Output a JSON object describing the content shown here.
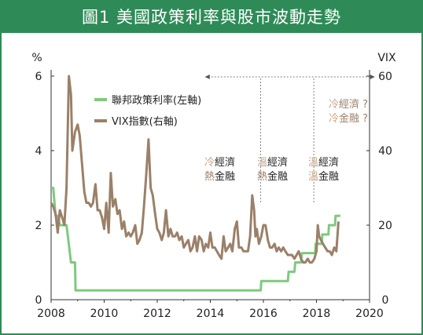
{
  "title": "圖1 美國政策利率與股市波動走勢",
  "colors": {
    "frame": "#2e8b57",
    "fed": "#7fc97f",
    "vix": "#9b8069",
    "temp_cold": "#c8a58a",
    "temp_hot": "#9b8069"
  },
  "chart_data": {
    "type": "line",
    "title": "圖1 美國政策利率與股市波動走勢",
    "left_axis": {
      "unit": "%",
      "range": [
        0,
        6
      ],
      "ticks": [
        "0",
        "2",
        "4",
        "6"
      ]
    },
    "right_axis": {
      "unit": "VIX",
      "range": [
        0,
        60
      ],
      "ticks": [
        "0",
        "20",
        "40",
        "60"
      ]
    },
    "x_axis": {
      "range": [
        2008,
        2020
      ],
      "ticks": [
        "2008",
        "2010",
        "2012",
        "2014",
        "2016",
        "2018",
        "2020"
      ]
    },
    "legend": [
      {
        "name": "聯邦政策利率(左軸)",
        "color": "#7fc97f"
      },
      {
        "name": "VIX指數(右軸)",
        "color": "#9b8069"
      }
    ],
    "series": [
      {
        "name": "聯邦政策利率(左軸)",
        "axis": "left",
        "x": [
          2008.0,
          2008.08,
          2008.17,
          2008.25,
          2008.33,
          2008.5,
          2008.58,
          2008.75,
          2008.83,
          2008.9,
          2008.92,
          2015.9,
          2015.92,
          2016.92,
          2016.95,
          2017.17,
          2017.2,
          2017.42,
          2017.45,
          2017.95,
          2017.97,
          2018.2,
          2018.22,
          2018.45,
          2018.47,
          2018.7,
          2018.72,
          2018.9
        ],
        "values": [
          3.0,
          3.0,
          2.25,
          2.25,
          2.0,
          2.0,
          2.0,
          1.0,
          1.0,
          1.0,
          0.25,
          0.25,
          0.5,
          0.5,
          0.75,
          0.75,
          1.0,
          1.0,
          1.25,
          1.25,
          1.5,
          1.5,
          1.75,
          1.75,
          2.0,
          2.0,
          2.25,
          2.25
        ]
      },
      {
        "name": "VIX指數(右軸)",
        "axis": "right",
        "x": [
          2008.0,
          2008.08,
          2008.17,
          2008.25,
          2008.33,
          2008.42,
          2008.5,
          2008.58,
          2008.67,
          2008.75,
          2008.8,
          2008.9,
          2009.0,
          2009.08,
          2009.17,
          2009.25,
          2009.33,
          2009.42,
          2009.5,
          2009.58,
          2009.67,
          2009.75,
          2009.83,
          2009.92,
          2010.0,
          2010.08,
          2010.17,
          2010.25,
          2010.33,
          2010.42,
          2010.5,
          2010.58,
          2010.67,
          2010.75,
          2010.83,
          2010.92,
          2011.0,
          2011.08,
          2011.17,
          2011.25,
          2011.33,
          2011.42,
          2011.5,
          2011.58,
          2011.67,
          2011.75,
          2011.83,
          2011.92,
          2012.0,
          2012.08,
          2012.17,
          2012.25,
          2012.33,
          2012.42,
          2012.5,
          2012.58,
          2012.67,
          2012.75,
          2012.83,
          2012.92,
          2013.0,
          2013.08,
          2013.17,
          2013.25,
          2013.33,
          2013.42,
          2013.5,
          2013.58,
          2013.67,
          2013.75,
          2013.83,
          2013.92,
          2014.0,
          2014.08,
          2014.17,
          2014.25,
          2014.33,
          2014.42,
          2014.5,
          2014.58,
          2014.67,
          2014.75,
          2014.83,
          2014.92,
          2015.0,
          2015.08,
          2015.17,
          2015.25,
          2015.33,
          2015.42,
          2015.5,
          2015.58,
          2015.65,
          2015.7,
          2015.75,
          2015.83,
          2015.92,
          2016.0,
          2016.08,
          2016.17,
          2016.25,
          2016.33,
          2016.42,
          2016.5,
          2016.58,
          2016.67,
          2016.75,
          2016.83,
          2016.92,
          2017.0,
          2017.08,
          2017.17,
          2017.25,
          2017.33,
          2017.42,
          2017.5,
          2017.58,
          2017.67,
          2017.75,
          2017.83,
          2017.92,
          2018.0,
          2018.05,
          2018.1,
          2018.17,
          2018.25,
          2018.33,
          2018.42,
          2018.5,
          2018.58,
          2018.67,
          2018.75,
          2018.83
        ],
        "values": [
          26,
          25,
          23,
          18,
          24,
          22,
          20,
          30,
          60,
          55,
          40,
          45,
          47,
          44,
          36,
          29,
          26,
          26,
          25,
          26,
          31,
          24,
          24,
          22,
          19,
          26,
          18,
          34,
          25,
          27,
          23,
          24,
          19,
          21,
          17,
          18,
          17,
          18,
          20,
          15,
          16,
          18,
          25,
          33,
          43,
          30,
          28,
          23,
          19,
          18,
          16,
          18,
          24,
          17,
          19,
          17,
          17,
          18,
          16,
          17,
          14,
          15,
          16,
          13,
          14,
          17,
          13,
          17,
          16,
          13,
          15,
          14,
          18,
          14,
          14,
          13,
          12,
          11,
          17,
          13,
          14,
          15,
          13,
          19,
          21,
          14,
          14,
          13,
          13,
          13,
          17,
          28,
          24,
          17,
          19,
          15,
          17,
          20,
          20,
          16,
          14,
          14,
          15,
          13,
          14,
          13,
          14,
          13,
          12,
          12,
          12,
          11,
          12,
          13,
          11,
          10,
          10,
          11,
          10,
          10,
          11,
          13,
          20,
          17,
          16,
          15,
          14,
          13,
          13,
          12,
          14,
          13,
          21
        ]
      }
    ],
    "annotations": [
      {
        "lines": [
          {
            "text": "冷經濟",
            "prefix_color": "cold"
          },
          {
            "text": "熱金融",
            "prefix_color": "hot"
          }
        ]
      },
      {
        "lines": [
          {
            "text": "溫經濟",
            "prefix_color": "cold"
          },
          {
            "text": "熱金融",
            "prefix_color": "hot"
          }
        ]
      },
      {
        "lines": [
          {
            "text": "溫經濟",
            "prefix_color": "cold"
          },
          {
            "text": "溫金融",
            "prefix_color": "cold"
          }
        ]
      },
      {
        "lines": [
          {
            "text": "冷經濟 ?",
            "prefix_color": "cold"
          },
          {
            "text": "冷金融 ?",
            "prefix_color": "cold"
          }
        ]
      }
    ],
    "grid": false
  }
}
